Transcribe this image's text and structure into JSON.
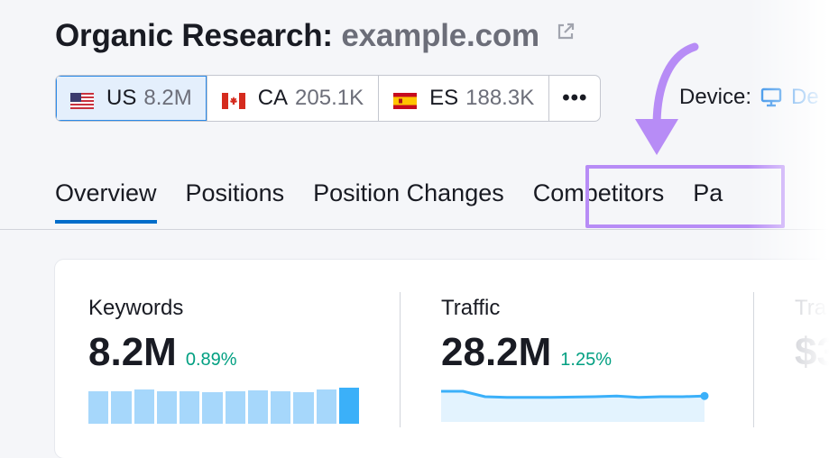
{
  "header": {
    "title_prefix": "Organic Research:",
    "domain": "example.com"
  },
  "databases": [
    {
      "code": "US",
      "count": "8.2M",
      "flag": "flag-us-icon",
      "selected": true
    },
    {
      "code": "CA",
      "count": "205.1K",
      "flag": "flag-ca-icon",
      "selected": false
    },
    {
      "code": "ES",
      "count": "188.3K",
      "flag": "flag-es-icon",
      "selected": false
    }
  ],
  "more_label": "•••",
  "device": {
    "label": "Device:",
    "value": "De"
  },
  "tabs": [
    {
      "label": "Overview",
      "active": true
    },
    {
      "label": "Positions",
      "active": false
    },
    {
      "label": "Position Changes",
      "active": false
    },
    {
      "label": "Competitors",
      "active": false,
      "highlighted": true
    },
    {
      "label": "Pa",
      "active": false
    }
  ],
  "metrics": [
    {
      "label": "Keywords",
      "value": "8.2M",
      "change": "0.89%",
      "trend_bars": [
        0.9,
        0.9,
        0.95,
        0.9,
        0.9,
        0.88,
        0.9,
        0.92,
        0.9,
        0.88,
        0.95,
        1.0
      ]
    },
    {
      "label": "Traffic",
      "value": "28.2M",
      "change": "1.25%",
      "trend_line": [
        0.85,
        0.85,
        0.7,
        0.68,
        0.68,
        0.68,
        0.69,
        0.7,
        0.72,
        0.68,
        0.7,
        0.7,
        0.72
      ]
    },
    {
      "label": "Tra",
      "value": "$3"
    }
  ],
  "colors": {
    "accent": "#006dca",
    "highlight": "#b78cf6",
    "positive": "#009f81",
    "bar": "#a6d7fb",
    "bar_last": "#3bb0f9",
    "line": "#3bb0f9"
  }
}
